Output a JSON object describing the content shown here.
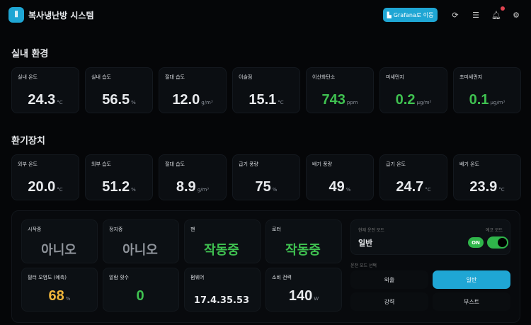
{
  "header": {
    "title": "복사냉난방 시스템",
    "logo_icon": "thermometer-icon",
    "grafana_label": "Grafana로 이동",
    "icons": [
      "refresh-icon",
      "server-icon",
      "bell-icon",
      "gear-icon"
    ]
  },
  "indoor": {
    "title": "실내 환경",
    "cards": [
      {
        "label": "실내 온도",
        "value": "24.3",
        "unit": "°C",
        "color": "white"
      },
      {
        "label": "실내 습도",
        "value": "56.5",
        "unit": "%",
        "color": "white"
      },
      {
        "label": "절대 습도",
        "value": "12.0",
        "unit": "g/m³",
        "color": "white"
      },
      {
        "label": "이슬점",
        "value": "15.1",
        "unit": "°C",
        "color": "white"
      },
      {
        "label": "이산화탄소",
        "value": "743",
        "unit": "ppm",
        "color": "green"
      },
      {
        "label": "미세먼지",
        "value": "0.2",
        "unit": "μg/m³",
        "color": "green"
      },
      {
        "label": "초미세먼지",
        "value": "0.1",
        "unit": "μg/m³",
        "color": "green"
      }
    ]
  },
  "ventilation": {
    "title": "환기장치",
    "cards": [
      {
        "label": "외부 온도",
        "value": "20.0",
        "unit": "°C"
      },
      {
        "label": "외부 습도",
        "value": "51.2",
        "unit": "%"
      },
      {
        "label": "절대 습도",
        "value": "8.9",
        "unit": "g/m³"
      },
      {
        "label": "급기 풍량",
        "value": "75",
        "unit": "%"
      },
      {
        "label": "배기 풍량",
        "value": "49",
        "unit": "%"
      },
      {
        "label": "급기 온도",
        "value": "24.7",
        "unit": "°C"
      },
      {
        "label": "배기 온도",
        "value": "23.9",
        "unit": "°C"
      }
    ]
  },
  "status": {
    "cards": [
      {
        "label": "시작중",
        "value": "아니오",
        "unit": "",
        "cls": "kr gr"
      },
      {
        "label": "정지중",
        "value": "아니오",
        "unit": "",
        "cls": "kr gr"
      },
      {
        "label": "팬",
        "value": "작동중",
        "unit": "",
        "cls": "kr g"
      },
      {
        "label": "로터",
        "value": "작동중",
        "unit": "",
        "cls": "kr g"
      },
      {
        "label": "필터 오염도 (예측)",
        "value": "68",
        "unit": "%",
        "cls": "num y"
      },
      {
        "label": "알람 횟수",
        "value": "0",
        "unit": "",
        "cls": "num g"
      },
      {
        "label": "펌웨어",
        "value": "17.4.35.53",
        "unit": "",
        "cls": "fw"
      },
      {
        "label": "소비 전력",
        "value": "140",
        "unit": "W",
        "cls": "num"
      }
    ]
  },
  "mode": {
    "current_label": "현재 운전 모드",
    "current_value": "일반",
    "eco_label": "에코 모드",
    "eco_state": "ON",
    "eco_on": true,
    "select_label": "운전 모드 선택",
    "options": [
      "외출",
      "일반",
      "강력",
      "부스트"
    ],
    "selected": "일반"
  },
  "colors": {
    "accent": "#1fa6d4",
    "green": "#3fc150",
    "yellow": "#efb53b",
    "alert": "#e04350"
  }
}
